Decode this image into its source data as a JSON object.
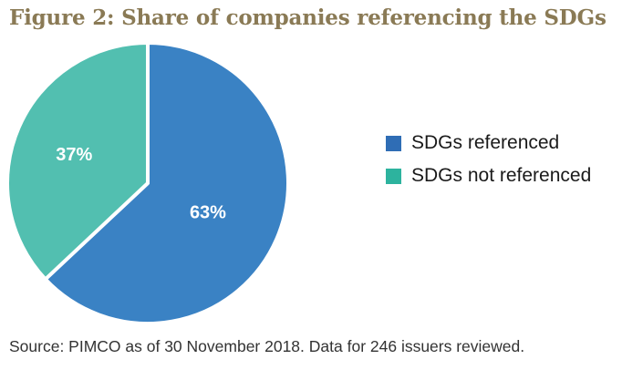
{
  "figure": {
    "title": "Figure 2: Share of companies referencing the SDGs",
    "source": "Source: PIMCO as of 30 November 2018. Data for 246 issuers reviewed."
  },
  "colors": {
    "title": "#8a7a55",
    "referenced": "#3a82c4",
    "not_referenced": "#52bfb0"
  },
  "chart_data": {
    "type": "pie",
    "title": "Figure 2: Share of companies referencing the SDGs",
    "slices": [
      {
        "name": "SDGs referenced",
        "value": 63,
        "label": "63%",
        "color": "#3a82c4"
      },
      {
        "name": "SDGs not referenced",
        "value": 37,
        "label": "37%",
        "color": "#52bfb0"
      }
    ],
    "legend_position": "right"
  },
  "legend": {
    "items": [
      {
        "label": "SDGs referenced",
        "color": "#2f6db5"
      },
      {
        "label": "SDGs not referenced",
        "color": "#2db39e"
      }
    ]
  }
}
